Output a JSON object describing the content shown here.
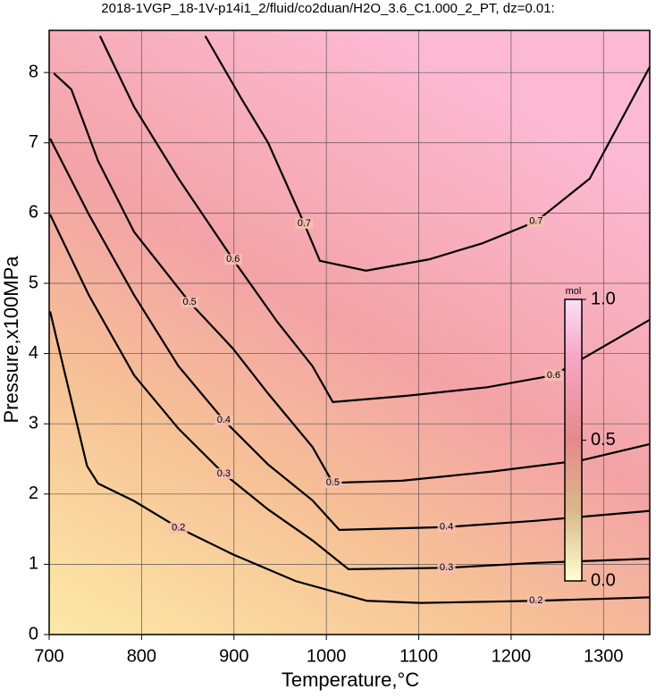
{
  "chart_data": {
    "type": "contour",
    "title": "2018-1VGP_18-1V-p14i1_2/fluid/co2duan/H2O_3.6_C1.000_2_PT, dz=0.01:",
    "xlabel": "Temperature,°C",
    "ylabel": "Pressure,x100MPa",
    "xlim": [
      700,
      1350
    ],
    "ylim": [
      0,
      8.6
    ],
    "xticks": [
      700,
      800,
      900,
      1000,
      1100,
      1200,
      1300
    ],
    "yticks": [
      0,
      1,
      2,
      3,
      4,
      5,
      6,
      7,
      8
    ],
    "grid": true,
    "contours": [
      {
        "level": 0.2,
        "x": [
          701,
          741,
          753,
          792,
          840,
          899,
          967,
          1044,
          1102,
          1227,
          1350
        ],
        "y": [
          4.6,
          2.4,
          2.15,
          1.9,
          1.52,
          1.14,
          0.76,
          0.48,
          0.45,
          0.48,
          0.53
        ]
      },
      {
        "level": 0.3,
        "x": [
          701,
          743,
          792,
          840,
          889,
          937,
          985,
          1024,
          1130,
          1227,
          1350
        ],
        "y": [
          5.98,
          4.83,
          3.69,
          2.93,
          2.29,
          1.78,
          1.34,
          0.93,
          0.95,
          1.02,
          1.08
        ]
      },
      {
        "level": 0.4,
        "x": [
          701,
          743,
          792,
          840,
          889,
          937,
          985,
          1014,
          1130,
          1227,
          1350
        ],
        "y": [
          7.06,
          5.98,
          4.83,
          3.82,
          3.05,
          2.42,
          1.91,
          1.49,
          1.53,
          1.62,
          1.76
        ]
      },
      {
        "level": 0.5,
        "x": [
          705,
          724,
          753,
          792,
          852,
          899,
          937,
          985,
          1007,
          1082,
          1179,
          1276,
          1350
        ],
        "y": [
          7.99,
          7.76,
          6.74,
          5.73,
          4.73,
          4.07,
          3.43,
          2.67,
          2.16,
          2.19,
          2.32,
          2.48,
          2.71
        ]
      },
      {
        "level": 0.6,
        "x": [
          755,
          792,
          840,
          899,
          947,
          985,
          1007,
          1088,
          1174,
          1246,
          1350
        ],
        "y": [
          8.52,
          7.51,
          6.49,
          5.34,
          4.45,
          3.82,
          3.31,
          3.4,
          3.52,
          3.69,
          4.48
        ]
      },
      {
        "level": 0.7,
        "x": [
          869,
          908,
          937,
          976,
          993,
          1043,
          1111,
          1169,
          1227,
          1285,
          1350
        ],
        "y": [
          8.52,
          7.63,
          7.0,
          5.85,
          5.32,
          5.18,
          5.34,
          5.57,
          5.88,
          6.49,
          8.08
        ]
      }
    ],
    "colorbar": {
      "label": "mol",
      "range": [
        0,
        1
      ],
      "ticks": [
        {
          "value": 0,
          "label": "0.0"
        },
        {
          "value": 0.5,
          "label": "0.5"
        },
        {
          "value": 1,
          "label": "1.0"
        }
      ]
    }
  }
}
